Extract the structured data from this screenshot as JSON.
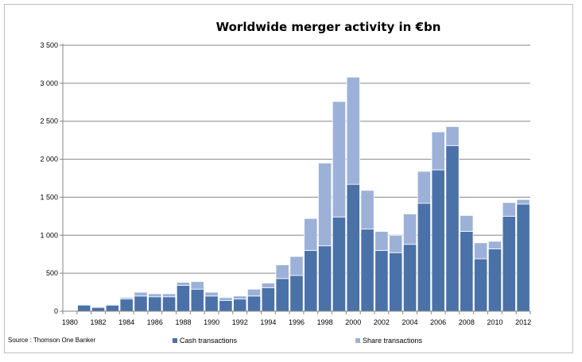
{
  "chart_data": {
    "type": "bar",
    "stacked": true,
    "title": "Worldwide merger activity in €bn",
    "source": "Source : Thomson One Banker",
    "ylim": [
      0,
      3500
    ],
    "yticks": [
      0,
      500,
      1000,
      1500,
      2000,
      2500,
      3000,
      3500
    ],
    "ytick_labels": [
      "0",
      "500",
      "1 000",
      "1 500",
      "2 000",
      "2 500",
      "3 000",
      "3 500"
    ],
    "x": [
      1980,
      1981,
      1982,
      1983,
      1984,
      1985,
      1986,
      1987,
      1988,
      1989,
      1990,
      1991,
      1992,
      1993,
      1994,
      1995,
      1996,
      1997,
      1998,
      1999,
      2000,
      2001,
      2002,
      2003,
      2004,
      2005,
      2006,
      2007,
      2008,
      2009,
      2010,
      2011,
      2012
    ],
    "xtick_labels": [
      "1980",
      "1982",
      "1984",
      "1986",
      "1988",
      "1990",
      "1992",
      "1994",
      "1996",
      "1998",
      "2000",
      "2002",
      "2004",
      "2006",
      "2008",
      "2010",
      "2012"
    ],
    "grid": true,
    "legend_position": "bottom",
    "series": [
      {
        "name": "Cash transactions",
        "color": "#4a72a8",
        "values": [
          0,
          80,
          50,
          80,
          160,
          200,
          190,
          190,
          340,
          290,
          200,
          140,
          160,
          200,
          310,
          430,
          470,
          800,
          860,
          1240,
          1670,
          1080,
          800,
          770,
          880,
          1420,
          1860,
          2180,
          1050,
          690,
          820,
          1250,
          1410
        ]
      },
      {
        "name": "Share transactions",
        "color": "#9db1d8",
        "values": [
          0,
          0,
          10,
          10,
          20,
          50,
          40,
          40,
          40,
          100,
          50,
          40,
          40,
          90,
          60,
          180,
          250,
          420,
          1090,
          1520,
          1410,
          510,
          250,
          230,
          400,
          420,
          500,
          250,
          210,
          210,
          100,
          180,
          60
        ]
      }
    ]
  }
}
